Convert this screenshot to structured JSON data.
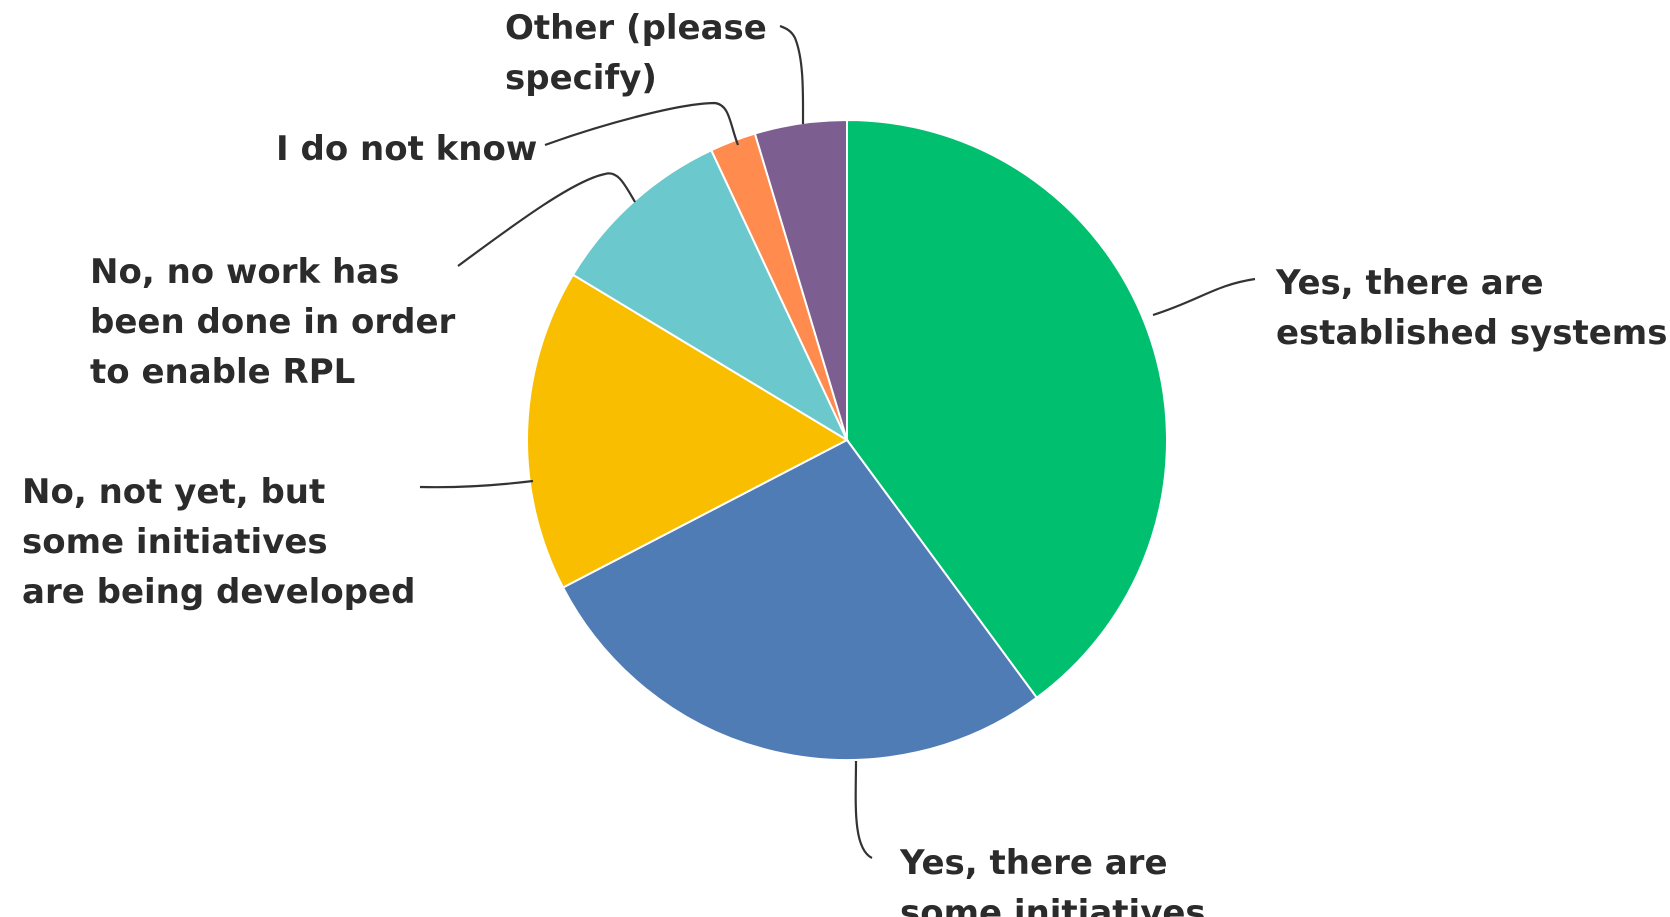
{
  "chart_data": {
    "type": "pie",
    "title": "",
    "start_angle_deg": 0,
    "direction": "clockwise",
    "slices": [
      {
        "label": "Yes, there are established systems",
        "label_lines": [
          "Yes, there are",
          "established systems"
        ],
        "value": 39.5,
        "color": "#00bf6f"
      },
      {
        "label": "Yes, there are some initiatives",
        "label_lines": [
          "Yes, there are",
          "some initiatives"
        ],
        "value": 27.2,
        "color": "#507cb6"
      },
      {
        "label": "No, not yet, but some initiatives are being developed",
        "label_lines": [
          "No, not yet, but",
          "some initiatives",
          "are being developed"
        ],
        "value": 16.1,
        "color": "#f9be00"
      },
      {
        "label": "No, no work has been done in order to enable RPL",
        "label_lines": [
          "No, no work has",
          "been done in order",
          "to enable RPL"
        ],
        "value": 9.3,
        "color": "#6bc8cd"
      },
      {
        "label": "I do not know",
        "label_lines": [
          "I do not know"
        ],
        "value": 2.3,
        "color": "#ff8b4f"
      },
      {
        "label": "Other (please specify)",
        "label_lines": [
          "Other (please",
          "specify)"
        ],
        "value": 4.6,
        "color": "#7d5e90"
      }
    ]
  }
}
